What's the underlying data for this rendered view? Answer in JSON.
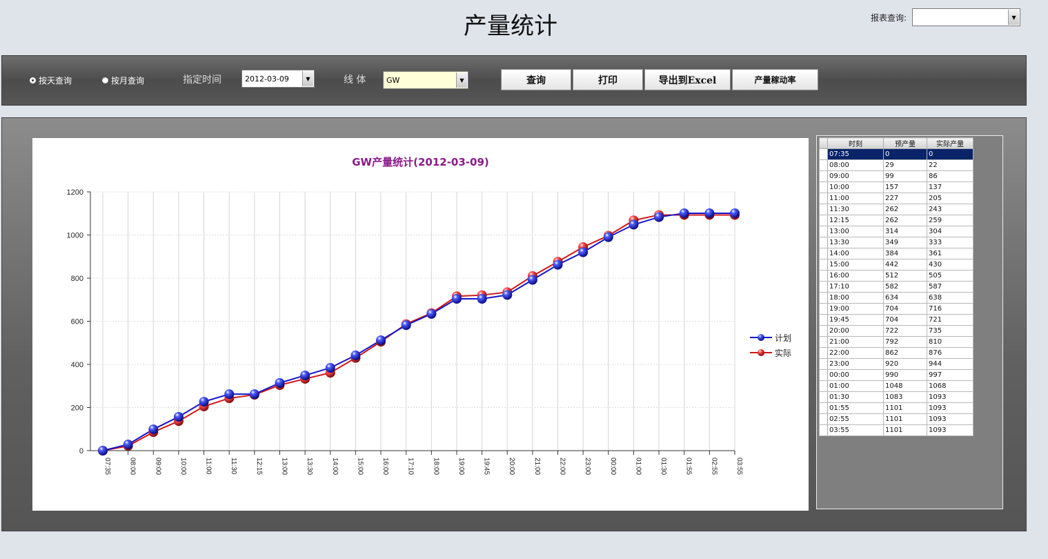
{
  "header": {
    "title": "产量统计",
    "report_query_label": "报表查询:",
    "report_query_value": ""
  },
  "toolbar": {
    "radio_day": "按天查询",
    "radio_month": "按月查询",
    "time_label": "指定时间",
    "date_value": "2012-03-09",
    "line_label": "线 体",
    "line_value": "GW",
    "query_button": "查询",
    "print_button": "打印",
    "export_button": "导出到Excel",
    "rate_button": "产量稼动率"
  },
  "chart_data": {
    "type": "line",
    "title": "GW产量统计(2012-03-09)",
    "categories": [
      "07:35",
      "08:00",
      "09:00",
      "10:00",
      "11:00",
      "11:30",
      "12:15",
      "13:00",
      "13:30",
      "14:00",
      "15:00",
      "16:00",
      "17:10",
      "18:00",
      "19:00",
      "19:45",
      "20:00",
      "21:00",
      "22:00",
      "23:00",
      "00:00",
      "01:00",
      "01:30",
      "01:55",
      "02:55",
      "03:55"
    ],
    "series": [
      {
        "name": "计划",
        "color": "#1414c8",
        "values": [
          0,
          29,
          99,
          157,
          227,
          262,
          262,
          314,
          349,
          384,
          442,
          512,
          582,
          634,
          704,
          704,
          722,
          792,
          862,
          920,
          990,
          1048,
          1083,
          1101,
          1101,
          1101
        ]
      },
      {
        "name": "实际",
        "color": "#d21414",
        "values": [
          0,
          22,
          86,
          137,
          205,
          243,
          259,
          304,
          333,
          361,
          430,
          505,
          587,
          638,
          716,
          721,
          735,
          810,
          876,
          944,
          997,
          1068,
          1093,
          1093,
          1093,
          1093
        ]
      }
    ],
    "ylim": [
      0,
      1200
    ],
    "yticks": [
      0,
      200,
      400,
      600,
      800,
      1000,
      1200
    ],
    "grid": true,
    "legend": "right"
  },
  "table": {
    "headers": [
      "时刻",
      "预产量",
      "实际产量"
    ],
    "selected_row": 0
  }
}
